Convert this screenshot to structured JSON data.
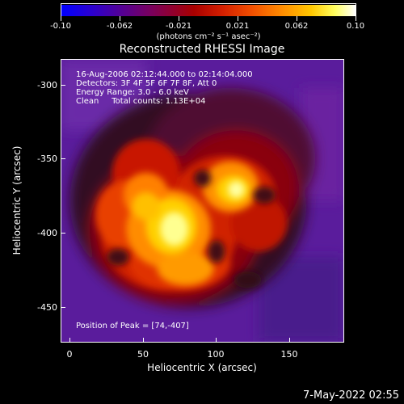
{
  "colorbar": {
    "ticks": [
      "-0.10",
      "-0.062",
      "-0.021",
      "0.021",
      "0.062",
      "0.10"
    ],
    "units": "(photons cm⁻² s⁻¹ asec⁻²)",
    "colormap": [
      "#0000ff",
      "#2a00cc",
      "#50009a",
      "#780066",
      "#a00000",
      "#d02000",
      "#f05000",
      "#ff9000",
      "#ffd000",
      "#ffff80",
      "#ffffff"
    ]
  },
  "title": "Reconstructed RHESSI Image",
  "info": {
    "line1": "16-Aug-2006 02:12:44.000 to 02:14:04.000",
    "line2": "Detectors: 3F 4F 5F 6F 7F 8F, Att 0",
    "line3": "Energy Range: 3.0 - 6.0 keV",
    "line4": "Clean     Total counts: 1.13E+04"
  },
  "peak": "Position of Peak = [74,-407]",
  "axes": {
    "xlabel": "Heliocentric X (arcsec)",
    "ylabel": "Heliocentric Y (arcsec)",
    "xticks": [
      "0",
      "50",
      "100",
      "150"
    ],
    "yticks": [
      "-300",
      "-350",
      "-400",
      "-450"
    ]
  },
  "footer": "7-May-2022 02:55"
}
